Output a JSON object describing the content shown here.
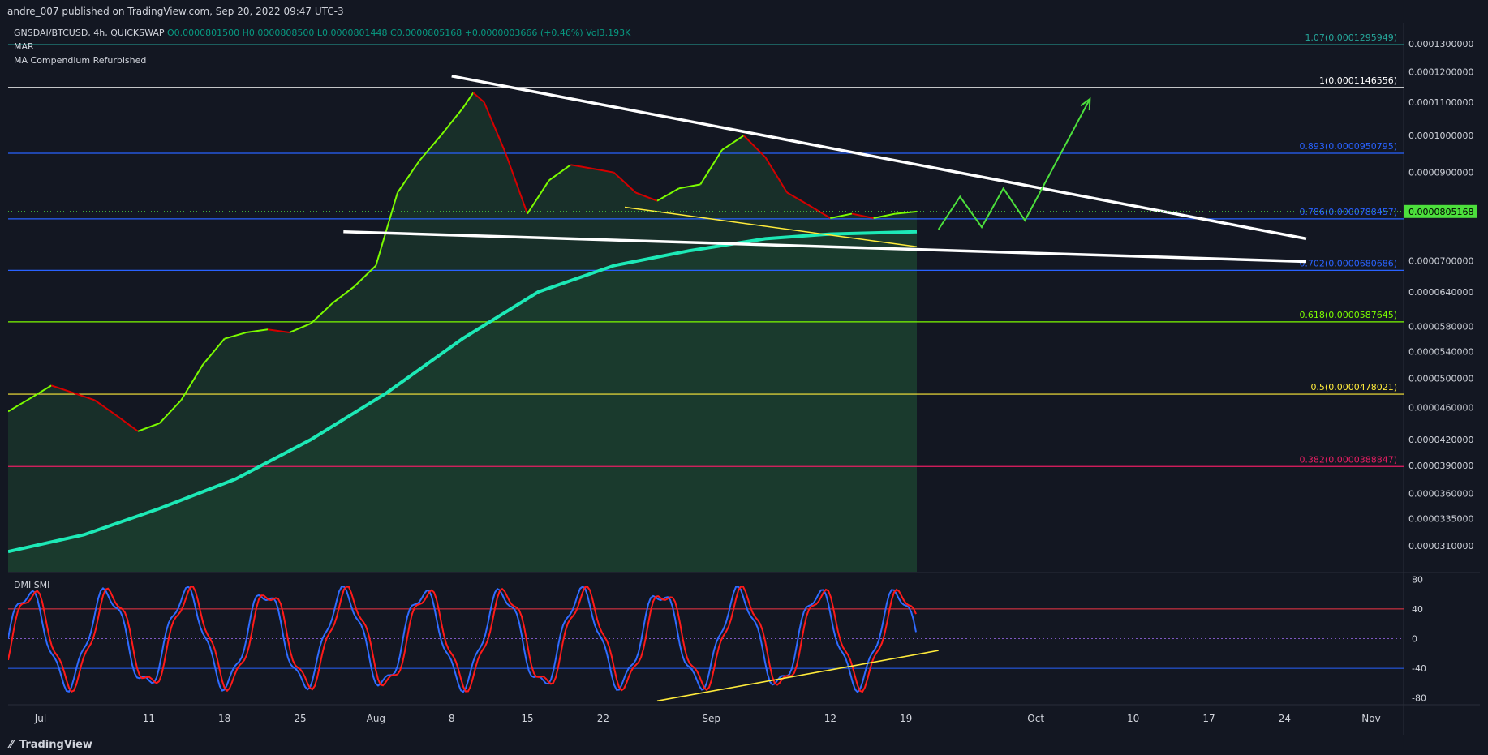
{
  "header": {
    "publish_line": "andre_007 published on TradingView.com, Sep 20, 2022 09:47 UTC-3"
  },
  "legend": {
    "symbol_line": "GNSDAI/BTCUSD, 4h, QUICKSWAP",
    "ohlc": {
      "o": "O0.0000801500",
      "h": "H0.0000808500",
      "l": "L0.0000801448",
      "c": "C0.0000805168",
      "chg": "+0.0000003666 (+0.46%)",
      "vol": "Vol3.193K"
    },
    "indicators": [
      "MAR",
      "MA Compendium Refurbished"
    ],
    "lower_panel_title": "DMI SMI"
  },
  "footer": {
    "brand": "TradingView"
  },
  "colors": {
    "background": "#131722",
    "up": "#7cfc00",
    "down": "#d50000",
    "ma_slow": "#1de9b6",
    "trendline": "#ffffff",
    "support": "#ffeb3b",
    "projection": "#4cdf3c",
    "fib_1": "#ffffff",
    "fib_893": "#2962ff",
    "fib_786": "#2962ff",
    "fib_702": "#2962ff",
    "fib_618": "#7cfc00",
    "fib_05": "#ffeb3b",
    "fib_382": "#e91e63",
    "fib_107": "#26a69a",
    "last_price_bg": "#4cdf3c",
    "smi_blue": "#2f6bff",
    "smi_red": "#ff1a1a"
  },
  "chart_data": {
    "type": "line",
    "symbol": "GNSDAI/BTCUSD",
    "interval": "4h",
    "exchange": "QUICKSWAP",
    "scale": "log",
    "last_price": "0.0000805168",
    "price_axis": {
      "ticks": [
        "0.0001300000",
        "0.0001200000",
        "0.0001100000",
        "0.0001000000",
        "0.0000900000",
        "0.0000700000",
        "0.0000640000",
        "0.0000580000",
        "0.0000540000",
        "0.0000500000",
        "0.0000460000",
        "0.0000420000",
        "0.0000390000",
        "0.0000360000",
        "0.0000335000",
        "0.0000310000"
      ],
      "range": [
        2.88e-05,
        0.000138
      ]
    },
    "time_axis": {
      "labels": [
        "Jul",
        "11",
        "18",
        "25",
        "Aug",
        "8",
        "15",
        "22",
        "Sep",
        "12",
        "19",
        "Oct",
        "10",
        "17",
        "24",
        "Nov"
      ],
      "dates": [
        "2022-07-01",
        "2022-07-11",
        "2022-07-18",
        "2022-07-25",
        "2022-08-01",
        "2022-08-08",
        "2022-08-15",
        "2022-08-22",
        "2022-09-01",
        "2022-09-12",
        "2022-09-19",
        "2022-10-01",
        "2022-10-10",
        "2022-10-17",
        "2022-10-24",
        "2022-11-01"
      ],
      "range": [
        "2022-06-28",
        "2022-11-04"
      ]
    },
    "fib_levels": [
      {
        "label": "1.07(0.0001295949)",
        "ratio": 1.07,
        "price": 0.0001295949,
        "color_key": "fib_107"
      },
      {
        "label": "1(0.0001146556)",
        "ratio": 1,
        "price": 0.0001146556,
        "color_key": "fib_1"
      },
      {
        "label": "0.893(0.0000950795)",
        "ratio": 0.893,
        "price": 9.50795e-05,
        "color_key": "fib_893"
      },
      {
        "label": "0.786(0.0000788457)",
        "ratio": 0.786,
        "price": 7.88457e-05,
        "color_key": "fib_786"
      },
      {
        "label": "0.702(0.0000680686)",
        "ratio": 0.702,
        "price": 6.80686e-05,
        "color_key": "fib_702"
      },
      {
        "label": "0.618(0.0000587645)",
        "ratio": 0.618,
        "price": 5.87645e-05,
        "color_key": "fib_618"
      },
      {
        "label": "0.5(0.0000478021)",
        "ratio": 0.5,
        "price": 4.78021e-05,
        "color_key": "fib_05"
      },
      {
        "label": "0.382(0.0000388847)",
        "ratio": 0.382,
        "price": 3.88847e-05,
        "color_key": "fib_382"
      }
    ],
    "price_series": {
      "dates": [
        "2022-06-28",
        "2022-06-30",
        "2022-07-02",
        "2022-07-04",
        "2022-07-06",
        "2022-07-08",
        "2022-07-10",
        "2022-07-12",
        "2022-07-14",
        "2022-07-16",
        "2022-07-18",
        "2022-07-20",
        "2022-07-22",
        "2022-07-24",
        "2022-07-26",
        "2022-07-28",
        "2022-07-30",
        "2022-08-01",
        "2022-08-03",
        "2022-08-05",
        "2022-08-07",
        "2022-08-09",
        "2022-08-10",
        "2022-08-11",
        "2022-08-13",
        "2022-08-15",
        "2022-08-17",
        "2022-08-19",
        "2022-08-21",
        "2022-08-23",
        "2022-08-25",
        "2022-08-27",
        "2022-08-29",
        "2022-08-31",
        "2022-09-02",
        "2022-09-04",
        "2022-09-06",
        "2022-09-08",
        "2022-09-10",
        "2022-09-12",
        "2022-09-14",
        "2022-09-16",
        "2022-09-18",
        "2022-09-20"
      ],
      "close": [
        4.55e-05,
        4.72e-05,
        4.9e-05,
        4.8e-05,
        4.7e-05,
        4.5e-05,
        4.3e-05,
        4.4e-05,
        4.7e-05,
        5.2e-05,
        5.6e-05,
        5.7e-05,
        5.75e-05,
        5.7e-05,
        5.85e-05,
        6.2e-05,
        6.5e-05,
        6.9e-05,
        8.5e-05,
        9.3e-05,
        0.0001,
        0.000108,
        0.000113,
        0.00011,
        9.5e-05,
        8e-05,
        8.8e-05,
        9.2e-05,
        9.1e-05,
        9e-05,
        8.5e-05,
        8.3e-05,
        8.6e-05,
        8.7e-05,
        9.6e-05,
        0.0001,
        9.4e-05,
        8.5e-05,
        8.2e-05,
        7.9e-05,
        8e-05,
        7.9e-05,
        8e-05,
        8.05e-05
      ]
    },
    "ma_slow": {
      "dates": [
        "2022-06-28",
        "2022-07-05",
        "2022-07-12",
        "2022-07-19",
        "2022-07-26",
        "2022-08-02",
        "2022-08-09",
        "2022-08-16",
        "2022-08-23",
        "2022-08-30",
        "2022-09-06",
        "2022-09-12",
        "2022-09-20"
      ],
      "values": [
        3.05e-05,
        3.2e-05,
        3.45e-05,
        3.75e-05,
        4.2e-05,
        4.8e-05,
        5.6e-05,
        6.4e-05,
        6.9e-05,
        7.2e-05,
        7.45e-05,
        7.55e-05,
        7.6e-05
      ]
    },
    "drawings": {
      "descending_trendline": [
        [
          "2022-08-08",
          0.0001185
        ],
        [
          "2022-10-26",
          7.45e-05
        ]
      ],
      "lower_trendline": [
        [
          "2022-07-29",
          7.6e-05
        ],
        [
          "2022-10-26",
          6.98e-05
        ]
      ],
      "support_line": [
        [
          "2022-08-24",
          8.15e-05
        ],
        [
          "2022-09-20",
          7.28e-05
        ]
      ],
      "projection_path": [
        [
          "2022-09-22",
          7.65e-05
        ],
        [
          "2022-09-24",
          8.4e-05
        ],
        [
          "2022-09-26",
          7.7e-05
        ],
        [
          "2022-09-28",
          8.6e-05
        ],
        [
          "2022-09-30",
          7.85e-05
        ],
        [
          "2022-10-06",
          0.000111
        ]
      ]
    },
    "oscillator": {
      "name": "DMI SMI",
      "ticks": [
        80,
        40,
        0,
        -40,
        -80
      ],
      "range": [
        -88,
        88
      ],
      "overbought": 40,
      "oversold": -40,
      "rising_support": [
        [
          "2022-08-27",
          -84
        ],
        [
          "2022-09-22",
          -16
        ]
      ]
    }
  }
}
